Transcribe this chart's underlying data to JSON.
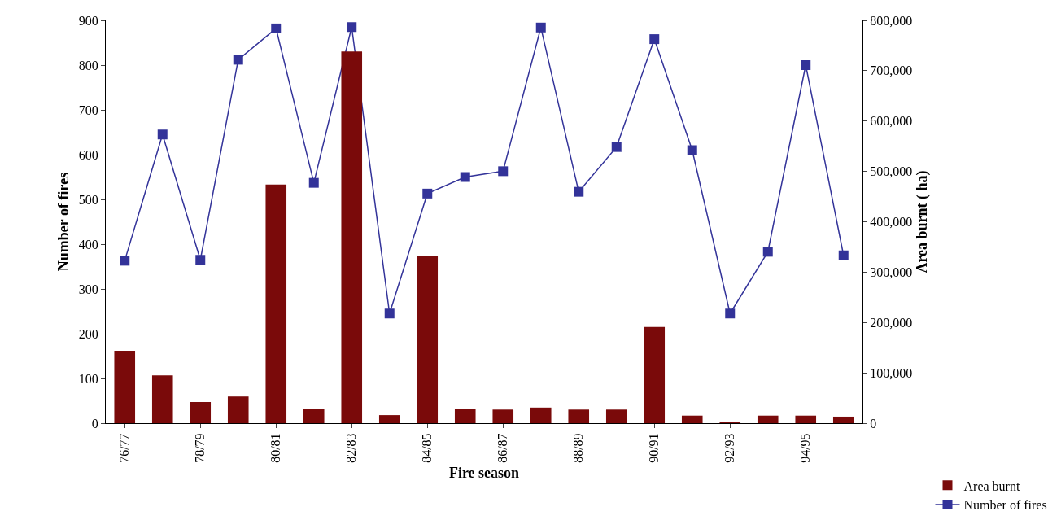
{
  "chart_data": {
    "type": "bar",
    "xlabel": "Fire season",
    "ylabel": "Number of fires",
    "y2label": "Area burnt ( ha)",
    "categories": [
      "76/77",
      null,
      "78/79",
      null,
      "80/81",
      null,
      "82/83",
      null,
      "84/85",
      null,
      "86/87",
      null,
      "88/89",
      null,
      "90/91",
      null,
      "92/93",
      null,
      "94/95",
      null
    ],
    "series": [
      {
        "name": "Area burnt",
        "axis": "y2",
        "color": "#7a0a0a",
        "values": [
          144000,
          95000,
          42000,
          53000,
          474000,
          29000,
          738000,
          16000,
          333000,
          28000,
          27000,
          31000,
          27000,
          27000,
          191000,
          15000,
          3000,
          15000,
          15000,
          13000
        ]
      },
      {
        "name": "Number of fires",
        "type": "line",
        "axis": "y",
        "color": "#333399",
        "marker": "square",
        "line_style": "solid",
        "values": [
          363,
          645,
          365,
          812,
          882,
          537,
          885,
          245,
          513,
          550,
          563,
          884,
          517,
          617,
          858,
          610,
          245,
          383,
          800,
          375
        ]
      }
    ],
    "ylim": [
      0,
      900
    ],
    "yticks": [
      0,
      100,
      200,
      300,
      400,
      500,
      600,
      700,
      800,
      900
    ],
    "y2lim": [
      0,
      800000
    ],
    "y2ticks": [
      {
        "value": 0,
        "label": "0"
      },
      {
        "value": 100000,
        "label": "100,000"
      },
      {
        "value": 200000,
        "label": "200,000"
      },
      {
        "value": 300000,
        "label": "300,000"
      },
      {
        "value": 400000,
        "label": "400,000"
      },
      {
        "value": 500000,
        "label": "500,000"
      },
      {
        "value": 600000,
        "label": "600,000"
      },
      {
        "value": 700000,
        "label": "700,000"
      },
      {
        "value": 800000,
        "label": "800,000"
      }
    ],
    "grid": false,
    "legend": "bottom right"
  }
}
